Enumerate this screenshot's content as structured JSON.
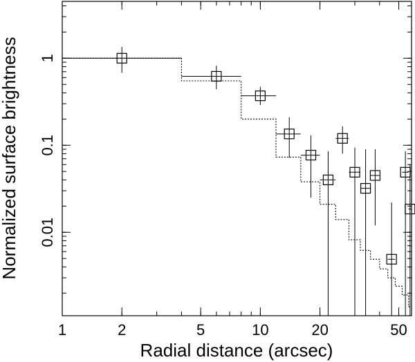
{
  "chart_data": {
    "type": "scatter",
    "xlabel": "Radial distance (arcsec)",
    "ylabel": "Normalized surface brightness",
    "xscale": "log",
    "yscale": "log",
    "xlim": [
      1,
      58
    ],
    "ylim": [
      0.0011,
      4.5
    ],
    "grid": false,
    "x_ticks": [
      {
        "value": 1,
        "label": "1"
      },
      {
        "value": 2,
        "label": "2"
      },
      {
        "value": 5,
        "label": "5"
      },
      {
        "value": 10,
        "label": "10"
      },
      {
        "value": 20,
        "label": "20"
      },
      {
        "value": 50,
        "label": "50"
      }
    ],
    "y_ticks": [
      {
        "value": 1,
        "label": "1"
      },
      {
        "value": 0.1,
        "label": "0.1"
      },
      {
        "value": 0.01,
        "label": "0.01"
      }
    ],
    "series": [
      {
        "style": "solid-squares-with-error-bars",
        "points": [
          {
            "x": 2.0,
            "x_lo": 1.0,
            "x_hi": 4.0,
            "y": 1.0,
            "y_lo": 0.68,
            "y_hi": 1.35
          },
          {
            "x": 6.0,
            "x_lo": 4.0,
            "x_hi": 8.0,
            "y": 0.62,
            "y_lo": 0.44,
            "y_hi": 0.82
          },
          {
            "x": 10.0,
            "x_lo": 8.0,
            "x_hi": 12.0,
            "y": 0.37,
            "y_lo": 0.29,
            "y_hi": 0.47
          },
          {
            "x": 14.0,
            "x_lo": 12.0,
            "x_hi": 16.0,
            "y": 0.135,
            "y_lo": 0.072,
            "y_hi": 0.21
          },
          {
            "x": 18.0,
            "x_lo": 16.0,
            "x_hi": 20.0,
            "y": 0.077,
            "y_lo": 0.025,
            "y_hi": 0.13
          },
          {
            "x": 22.0,
            "x_lo": 20.0,
            "x_hi": 24.0,
            "y": 0.04,
            "y_lo": 0.0011,
            "y_hi": 0.085
          },
          {
            "x": 26.0,
            "x_lo": 24.0,
            "x_hi": 28.0,
            "y": 0.12,
            "y_lo": 0.08,
            "y_hi": 0.165
          },
          {
            "x": 30.0,
            "x_lo": 28.0,
            "x_hi": 32.0,
            "y": 0.049,
            "y_lo": 0.0011,
            "y_hi": 0.094
          },
          {
            "x": 34.0,
            "x_lo": 32.0,
            "x_hi": 36.0,
            "y": 0.032,
            "y_lo": 0.0011,
            "y_hi": 0.09
          },
          {
            "x": 38.0,
            "x_lo": 36.0,
            "x_hi": 40.0,
            "y": 0.045,
            "y_lo": 0.012,
            "y_hi": 0.09
          },
          {
            "x": 46.0,
            "x_lo": 44.0,
            "x_hi": 48.0,
            "y": 0.0049,
            "y_lo": 0.0011,
            "y_hi": 0.022
          },
          {
            "x": 54.0,
            "x_lo": 52.0,
            "x_hi": 56.0,
            "y": 0.049,
            "y_lo": 0.0011,
            "y_hi": 0.085
          },
          {
            "x": 57.0,
            "x_lo": 56.0,
            "x_hi": 58.0,
            "y": 0.0185,
            "y_lo": 0.0011,
            "y_hi": 0.06
          }
        ]
      },
      {
        "style": "dotted-step",
        "steps": [
          {
            "x0": 1,
            "x1": 4,
            "y": 1.0
          },
          {
            "x0": 4,
            "x1": 8,
            "y": 0.55
          },
          {
            "x0": 8,
            "x1": 12,
            "y": 0.2
          },
          {
            "x0": 12,
            "x1": 16,
            "y": 0.073
          },
          {
            "x0": 16,
            "x1": 20,
            "y": 0.038
          },
          {
            "x0": 20,
            "x1": 24,
            "y": 0.021
          },
          {
            "x0": 24,
            "x1": 28,
            "y": 0.014
          },
          {
            "x0": 28,
            "x1": 32,
            "y": 0.0082
          },
          {
            "x0": 32,
            "x1": 36,
            "y": 0.0062
          },
          {
            "x0": 36,
            "x1": 40,
            "y": 0.0049
          },
          {
            "x0": 40,
            "x1": 44,
            "y": 0.0038
          },
          {
            "x0": 44,
            "x1": 48,
            "y": 0.003
          },
          {
            "x0": 48,
            "x1": 52,
            "y": 0.0024
          },
          {
            "x0": 52,
            "x1": 56,
            "y": 0.0019
          },
          {
            "x0": 56,
            "x1": 58,
            "y": 0.0014
          }
        ]
      }
    ]
  }
}
